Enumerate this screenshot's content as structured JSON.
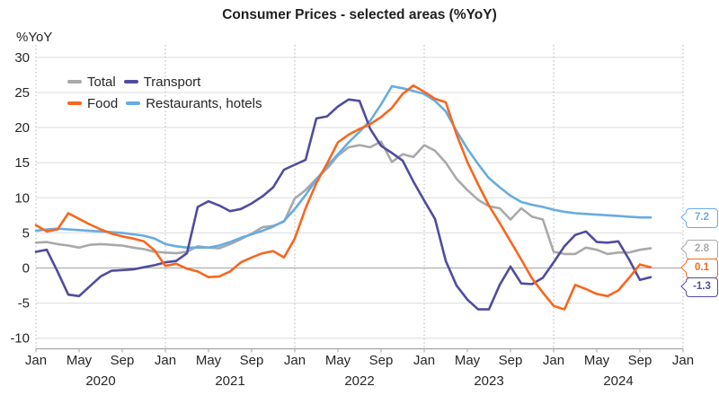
{
  "title": "Consumer Prices - selected areas (%YoY)",
  "y_axis_unit": "%YoY",
  "colors": {
    "total": "#a9a9a9",
    "transport": "#4f4c9f",
    "food": "#f7671e",
    "restaurants_hotels": "#67ace0",
    "grid": "#dcdcdc",
    "zero_line": "#a3a3a3",
    "axis": "#a3a3a3",
    "dotted_year_line": "#b3b3b3",
    "text": "#262626"
  },
  "legend": {
    "rows": [
      [
        "Total",
        "Transport"
      ],
      [
        "Food",
        "Restaurants, hotels"
      ]
    ]
  },
  "chart_data": {
    "type": "line",
    "title": "Consumer Prices - selected areas (%YoY)",
    "ylabel": "%YoY",
    "frequency": "monthly",
    "x_start": "2020-01",
    "x_end": "2024-10",
    "ylim": [
      -10,
      30
    ],
    "grid": true,
    "legend_position": "top-left-inside",
    "y_ticks": [
      30,
      25,
      20,
      15,
      10,
      5,
      0,
      -5,
      -10
    ],
    "x_tick_labels": [
      "Jan",
      "May",
      "Sep",
      "Jan",
      "May",
      "Sep",
      "Jan",
      "May",
      "Sep",
      "Jan",
      "May",
      "Sep",
      "Jan",
      "May",
      "Sep",
      "Jan"
    ],
    "year_labels": [
      "2020",
      "2021",
      "2022",
      "2023",
      "2024"
    ],
    "series": [
      {
        "name": "Total",
        "color_key": "total",
        "end_label": "2.8",
        "values": [
          3.6,
          3.7,
          3.4,
          3.2,
          2.9,
          3.3,
          3.4,
          3.3,
          3.2,
          2.9,
          2.7,
          2.3,
          2.2,
          2.1,
          2.3,
          3.1,
          2.9,
          2.8,
          3.4,
          4.1,
          4.9,
          5.8,
          6.0,
          6.6,
          9.9,
          11.1,
          12.7,
          14.2,
          16.0,
          17.2,
          17.5,
          17.2,
          18.0,
          15.1,
          16.2,
          15.8,
          17.5,
          16.7,
          15.0,
          12.7,
          11.1,
          9.7,
          8.8,
          8.5,
          6.9,
          8.5,
          7.3,
          6.9,
          2.3,
          2.0,
          2.0,
          2.9,
          2.6,
          2.0,
          2.2,
          2.2,
          2.6,
          2.8
        ]
      },
      {
        "name": "Transport",
        "color_key": "transport",
        "end_label": "-1.3",
        "values": [
          2.3,
          2.6,
          -0.5,
          -3.8,
          -4.0,
          -2.6,
          -1.2,
          -0.4,
          -0.3,
          -0.2,
          0.1,
          0.4,
          0.8,
          1.0,
          2.1,
          8.7,
          9.5,
          8.9,
          8.1,
          8.4,
          9.2,
          10.2,
          11.5,
          14.0,
          14.7,
          15.4,
          21.3,
          21.6,
          23.0,
          24.0,
          23.8,
          19.8,
          17.4,
          16.4,
          15.3,
          12.3,
          9.6,
          7.0,
          1.0,
          -2.5,
          -4.5,
          -5.9,
          -5.9,
          -2.4,
          0.2,
          -2.2,
          -2.3,
          -1.4,
          0.8,
          3.1,
          4.7,
          5.2,
          3.7,
          3.6,
          3.8,
          1.2,
          -1.7,
          -1.3
        ]
      },
      {
        "name": "Food",
        "color_key": "food",
        "end_label": "0.1",
        "values": [
          6.1,
          5.2,
          5.5,
          7.8,
          7.0,
          6.2,
          5.5,
          4.9,
          4.5,
          4.2,
          3.8,
          2.5,
          0.3,
          0.6,
          -0.1,
          -0.5,
          -1.3,
          -1.2,
          -0.5,
          0.8,
          1.5,
          2.1,
          2.4,
          1.5,
          4.2,
          8.5,
          12.1,
          14.9,
          17.9,
          19.0,
          19.8,
          20.5,
          21.5,
          22.8,
          24.8,
          26.0,
          25.1,
          24.1,
          23.6,
          19.0,
          15.1,
          11.9,
          8.9,
          6.4,
          3.8,
          1.2,
          -1.5,
          -3.5,
          -5.4,
          -5.9,
          -2.4,
          -3.0,
          -3.7,
          -4.0,
          -3.2,
          -1.4,
          0.5,
          0.1
        ]
      },
      {
        "name": "Restaurants, hotels",
        "color_key": "restaurants_hotels",
        "end_label": "7.2",
        "values": [
          5.3,
          5.5,
          5.6,
          5.5,
          5.4,
          5.3,
          5.2,
          5.1,
          5.0,
          4.8,
          4.6,
          4.2,
          3.4,
          3.1,
          2.9,
          2.9,
          2.9,
          3.2,
          3.7,
          4.3,
          4.8,
          5.3,
          5.9,
          6.7,
          8.4,
          10.4,
          12.6,
          14.5,
          16.2,
          17.9,
          19.4,
          21.0,
          23.3,
          25.9,
          25.6,
          25.2,
          24.8,
          23.8,
          22.3,
          19.5,
          17.0,
          14.8,
          12.8,
          11.5,
          10.3,
          9.4,
          9.0,
          8.7,
          8.3,
          8.0,
          7.8,
          7.7,
          7.6,
          7.5,
          7.4,
          7.3,
          7.2,
          7.2
        ]
      }
    ]
  }
}
